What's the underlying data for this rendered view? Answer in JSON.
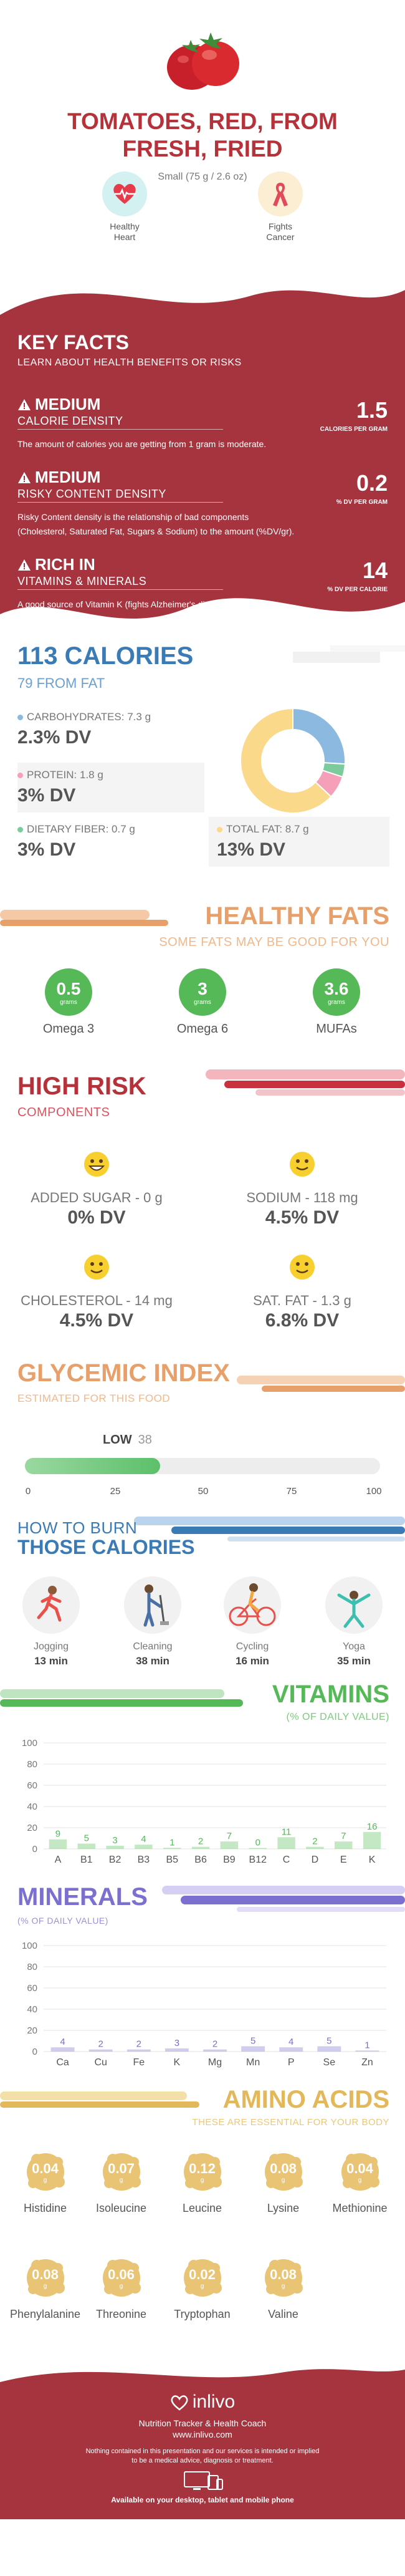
{
  "header": {
    "title_line1": "TOMATOES, RED, FROM",
    "title_line2": "FRESH, FRIED",
    "serving": "Small (75 g / 2.6 oz)",
    "badges": [
      {
        "label_line1": "Healthy",
        "label_line2": "Heart",
        "icon": "heart-pulse-icon"
      },
      {
        "label_line1": "Fights",
        "label_line2": "Cancer",
        "icon": "cancer-ribbon-icon"
      }
    ]
  },
  "key_facts": {
    "title": "KEY FACTS",
    "subtitle": "LEARN ABOUT HEALTH BENEFITS OR RISKS",
    "facts": [
      {
        "level": "MEDIUM",
        "category": "CALORIE DENSITY",
        "value": "1.5",
        "unit": "CALORIES PER GRAM",
        "description": "The amount of calories you are getting from 1 gram is moderate."
      },
      {
        "level": "MEDIUM",
        "category": "RISKY CONTENT DENSITY",
        "value": "0.2",
        "unit": "% DV PER GRAM",
        "description_line1": "Risky Content density is the relationship of bad components",
        "description_line2": "(Cholesterol, Saturated Fat, Sugars & Sodium) to the amount (%DV/gr)."
      },
      {
        "level": "RICH  IN",
        "category": "VITAMINS & MINERALS",
        "value": "14",
        "unit": "% DV PER CALORIE",
        "description": "A good source of Vitamin K (fights Alzheimer's disease)."
      }
    ]
  },
  "calories": {
    "title": "113 CALORIES",
    "from_fat": "79 FROM FAT",
    "carbs": {
      "label": "CARBOHYDRATES: 7.3 g",
      "dv": "2.3% DV"
    },
    "protein": {
      "label": "PROTEIN: 1.8 g",
      "dv": "3% DV"
    },
    "fiber": {
      "label": "DIETARY FIBER: 0.7 g",
      "dv": "3% DV"
    },
    "fat": {
      "label": "TOTAL FAT: 8.7 g",
      "dv": "13% DV"
    },
    "colors": {
      "carbs": "#8bb9e0",
      "protein": "#f5a0b8",
      "fiber": "#7ccb9c",
      "fat": "#fbd98a"
    },
    "donut_shares": {
      "carbs": 0.26,
      "protein": 0.07,
      "fiber": 0.04,
      "fat": 0.63
    }
  },
  "healthy_fats": {
    "title": "HEALTHY FATS",
    "subtitle": "SOME FATS MAY BE GOOD FOR YOU",
    "items": [
      {
        "value": "0.5",
        "unit": "grams",
        "name": "Omega 3"
      },
      {
        "value": "3",
        "unit": "grams",
        "name": "Omega 6"
      },
      {
        "value": "3.6",
        "unit": "grams",
        "name": "MUFAs"
      }
    ]
  },
  "high_risk": {
    "title": "HIGH RISK",
    "subtitle": "COMPONENTS",
    "items": [
      {
        "name": "ADDED SUGAR - 0 g",
        "dv": "0% DV"
      },
      {
        "name": "SODIUM - 118 mg",
        "dv": "4.5% DV"
      },
      {
        "name": "CHOLESTEROL - 14 mg",
        "dv": "4.5% DV"
      },
      {
        "name": "SAT. FAT - 1.3 g",
        "dv": "6.8% DV"
      }
    ]
  },
  "glycemic": {
    "title": "GLYCEMIC INDEX",
    "subtitle": "ESTIMATED FOR THIS FOOD",
    "level": "LOW",
    "value": "38",
    "fill_fraction": 0.38,
    "ticks": [
      "0",
      "25",
      "50",
      "75",
      "100"
    ]
  },
  "burn": {
    "title_line1": "HOW TO BURN",
    "title_line2": "THOSE CALORIES",
    "activities": [
      {
        "name": "Jogging",
        "minutes": "13 min"
      },
      {
        "name": "Cleaning",
        "minutes": "38 min"
      },
      {
        "name": "Cycling",
        "minutes": "16 min"
      },
      {
        "name": "Yoga",
        "minutes": "35 min"
      }
    ]
  },
  "vitamins": {
    "title": "VITAMINS",
    "subtitle": "(% OF DAILY VALUE)"
  },
  "minerals": {
    "title": "MINERALS",
    "subtitle": "(% OF DAILY VALUE)"
  },
  "chart_data": [
    {
      "type": "bar",
      "title": "VITAMINS",
      "subtitle": "(% OF DAILY VALUE)",
      "categories": [
        "A",
        "B1",
        "B2",
        "B3",
        "B5",
        "B6",
        "B9",
        "B12",
        "C",
        "D",
        "E",
        "K"
      ],
      "values": [
        9,
        5,
        3,
        4,
        1,
        2,
        7,
        0,
        11,
        2,
        7,
        16
      ],
      "ylim": [
        0,
        100
      ],
      "yticks": [
        "0",
        "20",
        "40",
        "60",
        "80",
        "100"
      ],
      "grid": true,
      "color": "#55b957"
    },
    {
      "type": "bar",
      "title": "MINERALS",
      "subtitle": "(% OF DAILY VALUE)",
      "categories": [
        "Ca",
        "Cu",
        "Fe",
        "K",
        "Mg",
        "Mn",
        "P",
        "Se",
        "Zn"
      ],
      "values": [
        4,
        2,
        2,
        3,
        2,
        5,
        4,
        5,
        1
      ],
      "ylim": [
        0,
        100
      ],
      "yticks": [
        "0",
        "20",
        "40",
        "60",
        "80",
        "100"
      ],
      "grid": true,
      "color": "#7b6fcf"
    }
  ],
  "amino": {
    "title": "AMINO ACIDS",
    "subtitle": "THESE ARE ESSENTIAL FOR YOUR BODY",
    "unit": "g",
    "items": [
      {
        "value": "0.04",
        "name": "Histidine"
      },
      {
        "value": "0.07",
        "name": "Isoleucine"
      },
      {
        "value": "0.12",
        "name": "Leucine"
      },
      {
        "value": "0.08",
        "name": "Lysine"
      },
      {
        "value": "0.04",
        "name": "Methionine"
      },
      {
        "value": "0.08",
        "name": "Phenylalanine"
      },
      {
        "value": "0.06",
        "name": "Threonine"
      },
      {
        "value": "0.02",
        "name": "Tryptophan"
      },
      {
        "value": "0.08",
        "name": "Valine"
      }
    ]
  },
  "footer": {
    "brand": "inlivo",
    "tagline": "Nutrition Tracker & Health Coach",
    "url": "www.inlivo.com",
    "disclaimer_line1": "Nothing contained in this presentation and our services is intended or implied",
    "disclaimer_line2": "to be a medical advice, diagnosis or treatment.",
    "devices": "Available on your desktop, tablet and mobile phone"
  },
  "colors": {
    "red": "#b5323a",
    "blue": "#3a7bb6",
    "orange": "#e8a06a",
    "green": "#55b957",
    "purple": "#7b6fcf",
    "gold": "#e2b85a"
  }
}
